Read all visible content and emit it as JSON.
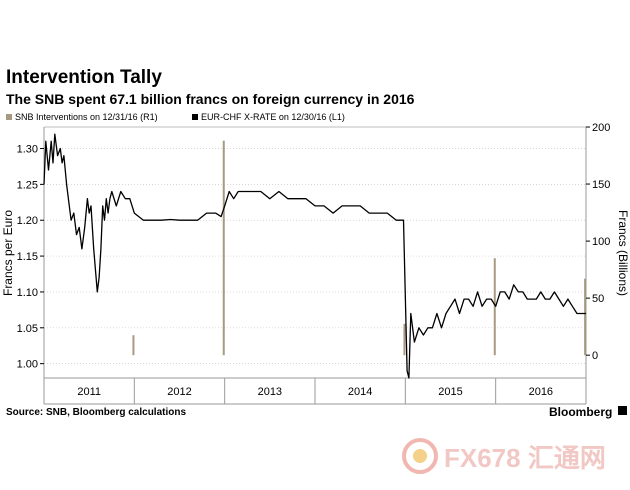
{
  "header": {
    "title": "Intervention Tally",
    "subtitle": "The SNB spent 67.1 billion francs on foreign currency in 2016"
  },
  "footer": {
    "source": "Source: SNB, Bloomberg calculations",
    "brand": "Bloomberg"
  },
  "watermark": {
    "text": "FX678 汇通网",
    "color": "#f2c8c4"
  },
  "colors": {
    "line": "#000000",
    "bars": "#a89a82",
    "grid": "#c8c8c8"
  },
  "chart_data": {
    "type": "line",
    "legend": [
      {
        "label": "SNB Interventions  on 12/31/16 (R1)",
        "color": "#a89a82",
        "marker": "square"
      },
      {
        "label": "EUR-CHF X-RATE  on 12/30/16 (L1)",
        "color": "#000000",
        "marker": "square"
      }
    ],
    "x_ticks": [
      "2011",
      "2012",
      "2013",
      "2014",
      "2015",
      "2016"
    ],
    "xlim": [
      2011.0,
      2017.0
    ],
    "y_left": {
      "label": "Francs per Euro",
      "range": [
        0.98,
        1.33
      ],
      "ticks": [
        1.0,
        1.05,
        1.1,
        1.15,
        1.2,
        1.25,
        1.3
      ],
      "tick_labels": [
        "1.00",
        "1.05",
        "1.10",
        "1.15",
        "1.20",
        "1.25",
        "1.30"
      ]
    },
    "y_right": {
      "label": "Francs (Billions)",
      "range": [
        -20,
        200
      ],
      "ticks": [
        0,
        50,
        100,
        150,
        200
      ],
      "tick_labels": [
        "0",
        "50",
        "100",
        "150",
        "200"
      ]
    },
    "series": [
      {
        "name": "EUR-CHF X-RATE",
        "axis": "left",
        "x": [
          2011.0,
          2011.02,
          2011.05,
          2011.08,
          2011.1,
          2011.12,
          2011.15,
          2011.18,
          2011.2,
          2011.22,
          2011.25,
          2011.28,
          2011.3,
          2011.33,
          2011.36,
          2011.39,
          2011.42,
          2011.45,
          2011.48,
          2011.5,
          2011.52,
          2011.55,
          2011.57,
          2011.59,
          2011.61,
          2011.63,
          2011.65,
          2011.67,
          2011.69,
          2011.71,
          2011.73,
          2011.75,
          2011.8,
          2011.85,
          2011.9,
          2011.95,
          2012.0,
          2012.1,
          2012.2,
          2012.3,
          2012.4,
          2012.5,
          2012.6,
          2012.7,
          2012.8,
          2012.9,
          2012.96,
          2013.0,
          2013.05,
          2013.1,
          2013.15,
          2013.2,
          2013.3,
          2013.4,
          2013.5,
          2013.6,
          2013.7,
          2013.8,
          2013.9,
          2014.0,
          2014.1,
          2014.2,
          2014.3,
          2014.4,
          2014.5,
          2014.6,
          2014.7,
          2014.8,
          2014.9,
          2014.98,
          2015.02,
          2015.04,
          2015.06,
          2015.1,
          2015.15,
          2015.2,
          2015.25,
          2015.3,
          2015.35,
          2015.4,
          2015.45,
          2015.5,
          2015.55,
          2015.6,
          2015.65,
          2015.7,
          2015.75,
          2015.8,
          2015.85,
          2015.9,
          2015.95,
          2016.0,
          2016.05,
          2016.1,
          2016.15,
          2016.2,
          2016.25,
          2016.3,
          2016.35,
          2016.4,
          2016.45,
          2016.5,
          2016.55,
          2016.6,
          2016.65,
          2016.7,
          2016.75,
          2016.8,
          2016.85,
          2016.9,
          2016.95,
          2017.0
        ],
        "values": [
          1.25,
          1.31,
          1.27,
          1.31,
          1.28,
          1.32,
          1.29,
          1.3,
          1.28,
          1.29,
          1.25,
          1.22,
          1.2,
          1.21,
          1.18,
          1.19,
          1.16,
          1.19,
          1.23,
          1.21,
          1.22,
          1.16,
          1.13,
          1.1,
          1.12,
          1.16,
          1.22,
          1.2,
          1.23,
          1.21,
          1.23,
          1.24,
          1.22,
          1.24,
          1.23,
          1.23,
          1.21,
          1.2,
          1.2,
          1.2,
          1.201,
          1.2,
          1.2,
          1.2,
          1.21,
          1.21,
          1.205,
          1.22,
          1.24,
          1.23,
          1.24,
          1.24,
          1.24,
          1.24,
          1.23,
          1.24,
          1.23,
          1.23,
          1.23,
          1.22,
          1.22,
          1.21,
          1.22,
          1.22,
          1.22,
          1.21,
          1.21,
          1.21,
          1.2,
          1.2,
          0.99,
          0.98,
          1.07,
          1.03,
          1.05,
          1.04,
          1.05,
          1.05,
          1.07,
          1.05,
          1.07,
          1.08,
          1.09,
          1.07,
          1.09,
          1.09,
          1.08,
          1.1,
          1.08,
          1.09,
          1.09,
          1.08,
          1.1,
          1.1,
          1.09,
          1.11,
          1.1,
          1.1,
          1.09,
          1.09,
          1.09,
          1.1,
          1.09,
          1.09,
          1.1,
          1.09,
          1.08,
          1.09,
          1.08,
          1.07,
          1.07,
          1.07
        ]
      },
      {
        "name": "SNB Interventions",
        "axis": "right",
        "type": "bar",
        "x": [
          2011.99,
          2012.99,
          2014.99,
          2015.99,
          2016.99
        ],
        "values": [
          17.5,
          188,
          27.5,
          85,
          67.1
        ]
      }
    ],
    "grid": true
  }
}
